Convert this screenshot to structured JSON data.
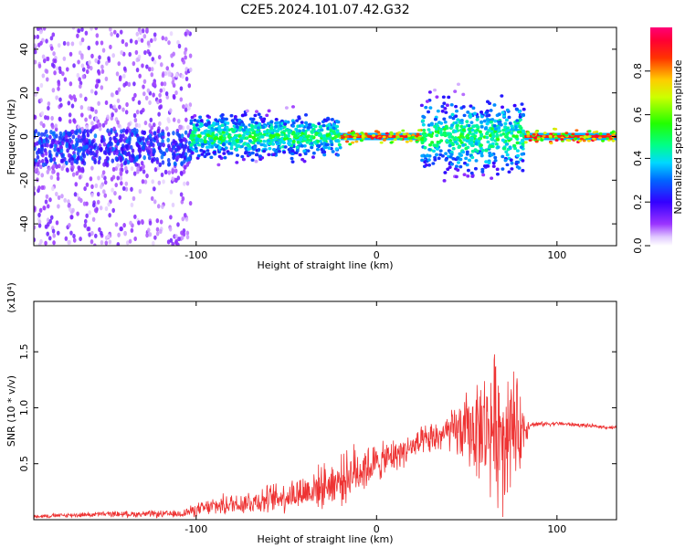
{
  "title": "C2E5.2024.101.07.42.G32",
  "chart_data": [
    {
      "type": "heatmap",
      "xlabel": "Height of straight line (km)",
      "ylabel": "Frequency (Hz)",
      "xlim": [
        -190,
        133
      ],
      "ylim": [
        -50,
        50
      ],
      "x_ticks": [
        -100,
        0,
        100
      ],
      "y_ticks": [
        -40,
        -20,
        0,
        20,
        40
      ],
      "colorbar": {
        "label": "Normalized spectral amplitude",
        "range": [
          0.0,
          1.0
        ],
        "ticks": [
          "0.0",
          "0.2",
          "0.4",
          "0.6",
          "0.8"
        ],
        "colormap": "rainbow (white-purple-blue-cyan-green-yellow-red-magenta)"
      },
      "grid": false,
      "segments": [
        {
          "x_from": -190,
          "x_to": -103,
          "center_hz": -5,
          "scatter_hz": 50,
          "amplitude": "low"
        },
        {
          "x_from": -103,
          "x_to": -20,
          "center_hz": 0,
          "scatter_hz": 6,
          "amplitude": "medium"
        },
        {
          "x_from": -20,
          "x_to": 25,
          "center_hz": 0,
          "scatter_hz": 1,
          "amplitude": "high"
        },
        {
          "x_from": 25,
          "x_to": 82,
          "center_hz": 0,
          "scatter_hz": 10,
          "amplitude": "medium"
        },
        {
          "x_from": 82,
          "x_to": 133,
          "center_hz": 0,
          "scatter_hz": 1,
          "amplitude": "high"
        }
      ]
    },
    {
      "type": "line",
      "xlabel": "Height of straight line (km)",
      "ylabel": "SNR (10 * v/v)",
      "y_multiplier": "(x10⁴)",
      "xlim": [
        -190,
        133
      ],
      "ylim": [
        0,
        1.95
      ],
      "x_ticks": [
        -100,
        0,
        100
      ],
      "y_ticks": [
        "0.5",
        "1.0",
        "1.5"
      ],
      "grid": false,
      "series": [
        {
          "color": "#ee3333",
          "envelope": {
            "x": [
              -190,
              -150,
              -110,
              -90,
              -60,
              -40,
              -20,
              -10,
              0,
              20,
              40,
              50,
              60,
              70,
              80,
              85,
              100,
              133
            ],
            "mean": [
              0.03,
              0.05,
              0.05,
              0.12,
              0.18,
              0.25,
              0.35,
              0.45,
              0.5,
              0.65,
              0.78,
              0.8,
              0.82,
              0.85,
              0.8,
              0.85,
              0.86,
              0.82
            ],
            "spread": [
              0.02,
              0.03,
              0.04,
              0.1,
              0.15,
              0.2,
              0.25,
              0.3,
              0.2,
              0.15,
              0.2,
              0.4,
              0.6,
              0.9,
              0.4,
              0.03,
              0.02,
              0.02
            ]
          }
        }
      ]
    }
  ]
}
